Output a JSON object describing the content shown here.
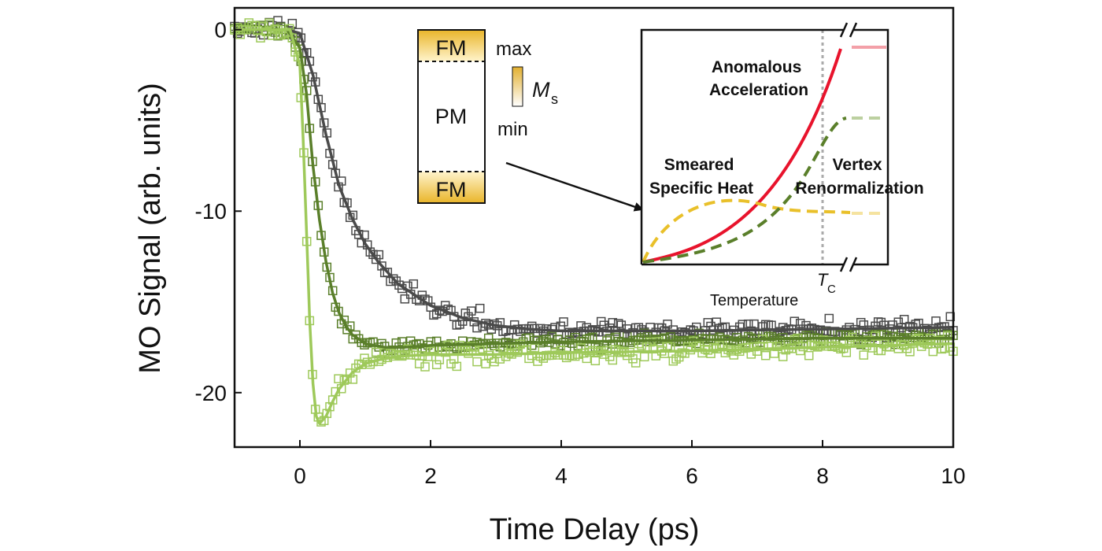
{
  "chart_data": {
    "type": "scatter",
    "title": "",
    "xlabel": "Time Delay (ps)",
    "ylabel": "MO Signal (arb. units)",
    "xlim": [
      -1,
      10
    ],
    "ylim": [
      -23,
      1.2
    ],
    "xticks": [
      0,
      2,
      4,
      6,
      8,
      10
    ],
    "xtick_labels": [
      "0",
      "2",
      "4",
      "6",
      "8",
      "10"
    ],
    "yticks": [
      0,
      -10,
      -20
    ],
    "ytick_labels": [
      "0",
      "-10",
      "-20"
    ],
    "grid": false,
    "legend": "none",
    "series": [
      {
        "color": "#4a4a4a",
        "marker": "open-square",
        "fit": {
          "x": [
            -1,
            -0.2,
            0,
            0.2,
            0.4,
            0.6,
            0.8,
            1.0,
            1.2,
            1.5,
            2.0,
            2.5,
            3.0,
            3.5,
            4,
            6,
            8,
            10
          ],
          "y": [
            0,
            0,
            -0.2,
            -2.5,
            -5.8,
            -8.6,
            -10.4,
            -11.8,
            -12.8,
            -14.0,
            -15.2,
            -15.9,
            -16.3,
            -16.5,
            -16.6,
            -16.6,
            -16.5,
            -16.4
          ]
        }
      },
      {
        "color": "#5a7f2a",
        "marker": "open-square",
        "fit": {
          "x": [
            -1,
            -0.2,
            0,
            0.1,
            0.2,
            0.3,
            0.4,
            0.5,
            0.6,
            0.7,
            0.8,
            1.0,
            1.3,
            1.6,
            2.0,
            3,
            4,
            6,
            8,
            10
          ],
          "y": [
            0,
            0,
            -1.0,
            -3.5,
            -7.5,
            -10.5,
            -12.8,
            -14.5,
            -15.6,
            -16.3,
            -16.8,
            -17.3,
            -17.5,
            -17.5,
            -17.4,
            -17.3,
            -17.2,
            -17.1,
            -17.0,
            -17.0
          ]
        }
      },
      {
        "color": "#9ec95a",
        "marker": "open-square",
        "fit": {
          "x": [
            -1,
            -0.15,
            0,
            0.05,
            0.1,
            0.15,
            0.2,
            0.25,
            0.3,
            0.4,
            0.5,
            0.6,
            0.8,
            1.0,
            1.2,
            1.5,
            2.0,
            3,
            4,
            6,
            8,
            10
          ],
          "y": [
            0,
            0,
            -2.0,
            -6.0,
            -11.0,
            -16.0,
            -19.5,
            -21.3,
            -21.7,
            -21.3,
            -20.5,
            -19.8,
            -18.9,
            -18.4,
            -18.2,
            -18.0,
            -17.9,
            -17.9,
            -17.8,
            -17.7,
            -17.5,
            -17.3
          ]
        }
      }
    ],
    "inset_schematic": {
      "top_label": "FM",
      "middle_label": "PM",
      "bottom_label": "FM",
      "scale_max": "max",
      "scale_min": "min",
      "scale_symbol": "M",
      "scale_subscript": "s"
    },
    "inset_plot": {
      "xlabel": "Temperature",
      "tc_symbol": "T",
      "tc_subscript": "C",
      "annotations": [
        {
          "lines": [
            "Anomalous",
            "Acceleration"
          ],
          "color": "#e8132c"
        },
        {
          "lines": [
            "Smeared",
            "Specific Heat"
          ],
          "color": "#e9c02a"
        },
        {
          "lines": [
            "Vertex",
            "Renormalization"
          ],
          "color": "#5a7f2a"
        }
      ],
      "colors": {
        "acceleration": "#e8132c",
        "specific_heat": "#e9c02a",
        "vertex": "#5a7f2a",
        "tc_line": "#aaaaaa"
      }
    }
  }
}
